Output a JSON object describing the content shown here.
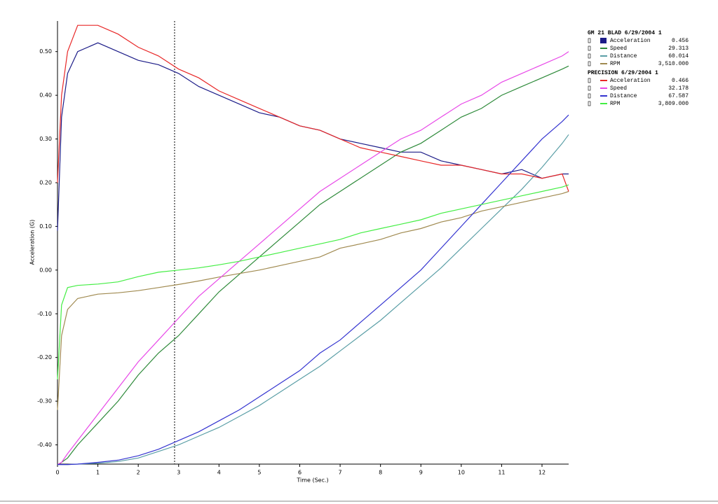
{
  "chart_data": {
    "type": "line",
    "y_label": "Acceleration (G)",
    "x_label": "Time (Sec.)",
    "xlim": [
      0,
      12.66
    ],
    "ylim": [
      -0.444,
      0.57
    ],
    "xticks": [
      0,
      1,
      2,
      3,
      4,
      5,
      6,
      7,
      8,
      9,
      10,
      11,
      12
    ],
    "yticks": [
      {
        "value": -0.4,
        "label": "-0.40"
      },
      {
        "value": -0.3,
        "label": "-0.30"
      },
      {
        "value": -0.2,
        "label": "-0.20"
      },
      {
        "value": -0.1,
        "label": "-0.10"
      },
      {
        "value": 0,
        "label": "0.00"
      },
      {
        "value": 0.1,
        "label": "0.10"
      },
      {
        "value": 0.2,
        "label": "0.20"
      },
      {
        "value": 0.3,
        "label": "0.30"
      },
      {
        "value": 0.4,
        "label": "0.40"
      },
      {
        "value": 0.5,
        "label": "0.50"
      }
    ],
    "cursor_x": 2.9,
    "x": [
      0,
      0.1,
      0.25,
      0.5,
      1,
      1.5,
      2,
      2.5,
      3,
      3.5,
      4,
      4.5,
      5,
      5.5,
      6,
      6.5,
      7,
      7.5,
      8,
      8.5,
      9,
      9.5,
      10,
      10.5,
      11,
      11.5,
      12,
      12.5,
      12.66
    ],
    "runs": [
      {
        "title": "GM 21 BLAD 6/29/2004 1",
        "series": [
          {
            "name": "Acceleration",
            "color": "#1c1c88",
            "readout": "0.456",
            "values": [
              0.09,
              0.35,
              0.45,
              0.5,
              0.52,
              0.5,
              0.48,
              0.47,
              0.45,
              0.42,
              0.4,
              0.38,
              0.36,
              0.35,
              0.33,
              0.32,
              0.3,
              0.29,
              0.28,
              0.27,
              0.27,
              0.25,
              0.24,
              0.23,
              0.22,
              0.23,
              0.21,
              0.22,
              0.22
            ]
          },
          {
            "name": "Speed",
            "color": "#2e8a3a",
            "readout": "29.313",
            "values": [
              -0.445,
              -0.44,
              -0.43,
              -0.4,
              -0.35,
              -0.3,
              -0.24,
              -0.19,
              -0.15,
              -0.1,
              -0.05,
              -0.01,
              0.03,
              0.07,
              0.11,
              0.15,
              0.18,
              0.21,
              0.24,
              0.27,
              0.29,
              0.32,
              0.35,
              0.37,
              0.4,
              0.42,
              0.44,
              0.46,
              0.467
            ]
          },
          {
            "name": "Distance",
            "color": "#5a9ea6",
            "readout": "60.014",
            "values": [
              -0.445,
              -0.445,
              -0.445,
              -0.444,
              -0.442,
              -0.438,
              -0.43,
              -0.415,
              -0.4,
              -0.38,
              -0.36,
              -0.335,
              -0.31,
              -0.28,
              -0.25,
              -0.22,
              -0.185,
              -0.15,
              -0.115,
              -0.075,
              -0.035,
              0.005,
              0.05,
              0.095,
              0.14,
              0.185,
              0.235,
              0.29,
              0.31
            ]
          },
          {
            "name": "RPM",
            "color": "#a08a50",
            "readout": "3,510.000",
            "values": [
              -0.32,
              -0.15,
              -0.09,
              -0.065,
              -0.055,
              -0.052,
              -0.047,
              -0.04,
              -0.033,
              -0.025,
              -0.016,
              -0.008,
              0,
              0.01,
              0.02,
              0.03,
              0.05,
              0.06,
              0.07,
              0.085,
              0.095,
              0.11,
              0.12,
              0.135,
              0.145,
              0.155,
              0.165,
              0.175,
              0.18
            ]
          }
        ]
      },
      {
        "title": "PRECISION 6/29/2004 1",
        "series": [
          {
            "name": "Acceleration",
            "color": "#e82828",
            "readout": "0.466",
            "values": [
              0.2,
              0.4,
              0.5,
              0.56,
              0.56,
              0.54,
              0.51,
              0.49,
              0.46,
              0.44,
              0.41,
              0.39,
              0.37,
              0.35,
              0.33,
              0.32,
              0.3,
              0.28,
              0.27,
              0.26,
              0.25,
              0.24,
              0.24,
              0.23,
              0.22,
              0.22,
              0.21,
              0.22,
              0.18
            ]
          },
          {
            "name": "Speed",
            "color": "#e848e8",
            "readout": "32.178",
            "values": [
              -0.445,
              -0.44,
              -0.42,
              -0.39,
              -0.33,
              -0.27,
              -0.21,
              -0.16,
              -0.11,
              -0.06,
              -0.02,
              0.02,
              0.06,
              0.1,
              0.14,
              0.18,
              0.21,
              0.24,
              0.27,
              0.3,
              0.32,
              0.35,
              0.38,
              0.4,
              0.43,
              0.45,
              0.47,
              0.49,
              0.5
            ]
          },
          {
            "name": "Distance",
            "color": "#3434d0",
            "readout": "67.587",
            "values": [
              -0.445,
              -0.445,
              -0.445,
              -0.444,
              -0.44,
              -0.435,
              -0.425,
              -0.41,
              -0.39,
              -0.37,
              -0.345,
              -0.32,
              -0.29,
              -0.26,
              -0.23,
              -0.19,
              -0.16,
              -0.12,
              -0.08,
              -0.04,
              0,
              0.05,
              0.1,
              0.15,
              0.2,
              0.25,
              0.3,
              0.34,
              0.355
            ]
          },
          {
            "name": "RPM",
            "color": "#44ee44",
            "readout": "3,809.000",
            "values": [
              -0.25,
              -0.08,
              -0.04,
              -0.035,
              -0.032,
              -0.027,
              -0.015,
              -0.005,
              0,
              0.005,
              0.012,
              0.02,
              0.03,
              0.04,
              0.05,
              0.06,
              0.07,
              0.085,
              0.095,
              0.105,
              0.115,
              0.13,
              0.14,
              0.15,
              0.16,
              0.17,
              0.18,
              0.19,
              0.195
            ]
          }
        ]
      }
    ]
  }
}
